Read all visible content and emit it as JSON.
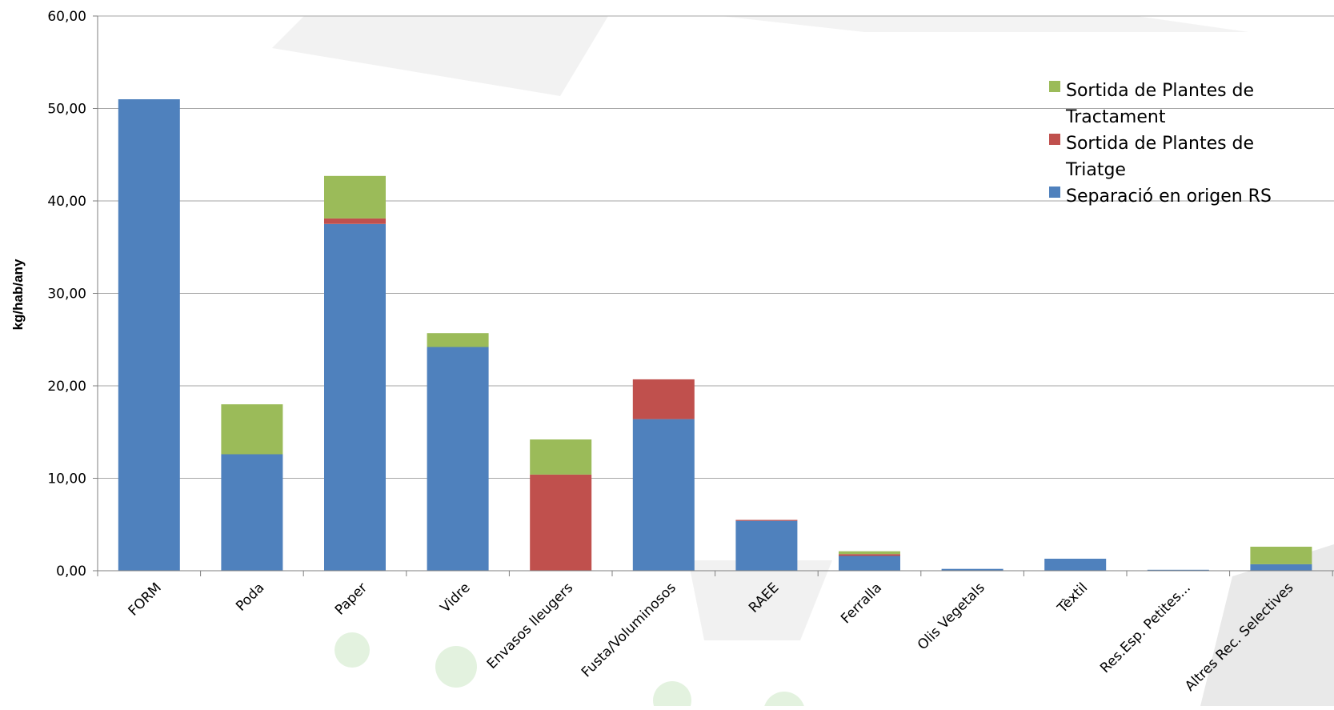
{
  "chart_data": {
    "type": "bar",
    "stacked": true,
    "title": "",
    "xlabel": "",
    "ylabel": "kg/hab/any",
    "ylim": [
      0,
      60
    ],
    "y_ticks": [
      "0,00",
      "10,00",
      "20,00",
      "30,00",
      "40,00",
      "50,00",
      "60,00"
    ],
    "grid": true,
    "legend_position": "top-right",
    "categories": [
      "FORM",
      "Poda",
      "Paper",
      "Vidre",
      "Envasos lleugers",
      "Fusta/Voluminosos",
      "RAEE",
      "Ferralla",
      "Olis Vegetals",
      "Tèxtil",
      "Res.Esp. Petites...",
      "Altres Rec. Selectives"
    ],
    "series": [
      {
        "name": "Separació en origen RS",
        "color": "#4f81bd",
        "values": [
          51.0,
          12.6,
          37.5,
          24.2,
          0.0,
          16.4,
          5.4,
          1.6,
          0.2,
          1.3,
          0.1,
          0.7
        ]
      },
      {
        "name": "Sortida de Plantes de Triatge",
        "color": "#c0504d",
        "values": [
          0.0,
          0.0,
          0.6,
          0.0,
          10.4,
          4.3,
          0.1,
          0.2,
          0.0,
          0.0,
          0.0,
          0.0
        ]
      },
      {
        "name": "Sortida de Plantes de Tractament",
        "color": "#9bbb59",
        "values": [
          0.0,
          5.4,
          4.6,
          1.5,
          3.8,
          0.0,
          0.0,
          0.3,
          0.0,
          0.0,
          0.0,
          1.9
        ]
      }
    ],
    "legend": [
      {
        "lines": [
          "Sortida de Plantes de",
          "Tractament"
        ],
        "color": "#9bbb59"
      },
      {
        "lines": [
          "Sortida de Plantes de",
          "Triatge"
        ],
        "color": "#c0504d"
      },
      {
        "lines": [
          "Separació en origen RS"
        ],
        "color": "#4f81bd"
      }
    ]
  }
}
